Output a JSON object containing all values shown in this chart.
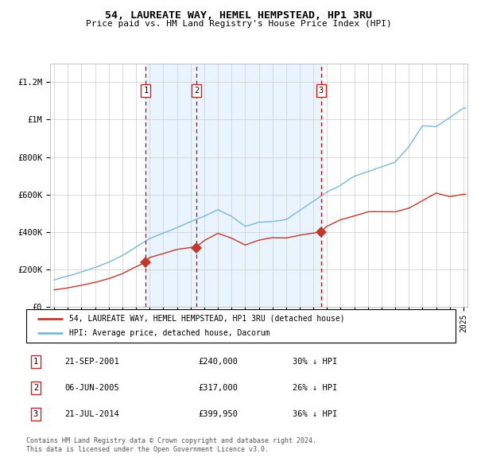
{
  "title": "54, LAUREATE WAY, HEMEL HEMPSTEAD, HP1 3RU",
  "subtitle": "Price paid vs. HM Land Registry's House Price Index (HPI)",
  "legend_line1": "54, LAUREATE WAY, HEMEL HEMPSTEAD, HP1 3RU (detached house)",
  "legend_line2": "HPI: Average price, detached house, Dacorum",
  "footer_line1": "Contains HM Land Registry data © Crown copyright and database right 2024.",
  "footer_line2": "This data is licensed under the Open Government Licence v3.0.",
  "transactions": [
    {
      "num": 1,
      "date_x": 2001.72,
      "price": 240000,
      "label": "21-SEP-2001",
      "amount": "£240,000",
      "pct": "30% ↓ HPI"
    },
    {
      "num": 2,
      "date_x": 2005.43,
      "price": 317000,
      "label": "06-JUN-2005",
      "amount": "£317,000",
      "pct": "26% ↓ HPI"
    },
    {
      "num": 3,
      "date_x": 2014.55,
      "price": 399950,
      "label": "21-JUL-2014",
      "amount": "£399,950",
      "pct": "36% ↓ HPI"
    }
  ],
  "shade_x0": 2001.72,
  "shade_x1": 2014.55,
  "xlim": [
    1994.7,
    2025.3
  ],
  "ylim": [
    0,
    1300000
  ],
  "yticks": [
    0,
    200000,
    400000,
    600000,
    800000,
    1000000,
    1200000
  ],
  "ytick_labels": [
    "£0",
    "£200K",
    "£400K",
    "£600K",
    "£800K",
    "£1M",
    "£1.2M"
  ],
  "hpi_color": "#7ab8d8",
  "price_color": "#c0392b",
  "dashed_color": "#cc0000",
  "bg_shade_color": "#ddeeff",
  "grid_color": "#cccccc",
  "box_color": "#cc2222",
  "hpi_keypoints_x": [
    1995,
    1996,
    1997,
    1998,
    1999,
    2000,
    2001,
    2002,
    2003,
    2004,
    2005,
    2006,
    2007,
    2008,
    2009,
    2010,
    2011,
    2012,
    2013,
    2014,
    2015,
    2016,
    2017,
    2018,
    2019,
    2020,
    2021,
    2022,
    2023,
    2024,
    2025
  ],
  "hpi_keypoints_y": [
    145000,
    165000,
    190000,
    215000,
    245000,
    280000,
    325000,
    370000,
    400000,
    430000,
    460000,
    490000,
    525000,
    490000,
    435000,
    455000,
    460000,
    470000,
    515000,
    565000,
    615000,
    650000,
    700000,
    725000,
    750000,
    775000,
    855000,
    965000,
    960000,
    1010000,
    1060000
  ],
  "price_keypoints_x": [
    1995,
    1996,
    1997,
    1998,
    1999,
    2000,
    2001,
    2001.72,
    2002,
    2003,
    2004,
    2005,
    2005.43,
    2006,
    2007,
    2008,
    2009,
    2010,
    2011,
    2012,
    2013,
    2014,
    2014.55,
    2015,
    2016,
    2017,
    2018,
    2019,
    2020,
    2021,
    2022,
    2023,
    2024,
    2025
  ],
  "price_keypoints_y": [
    92000,
    102000,
    117000,
    132000,
    152000,
    178000,
    215000,
    240000,
    265000,
    285000,
    305000,
    315000,
    317000,
    350000,
    390000,
    365000,
    328000,
    355000,
    370000,
    368000,
    383000,
    393000,
    399950,
    430000,
    465000,
    485000,
    505000,
    505000,
    505000,
    525000,
    565000,
    605000,
    585000,
    598000
  ]
}
